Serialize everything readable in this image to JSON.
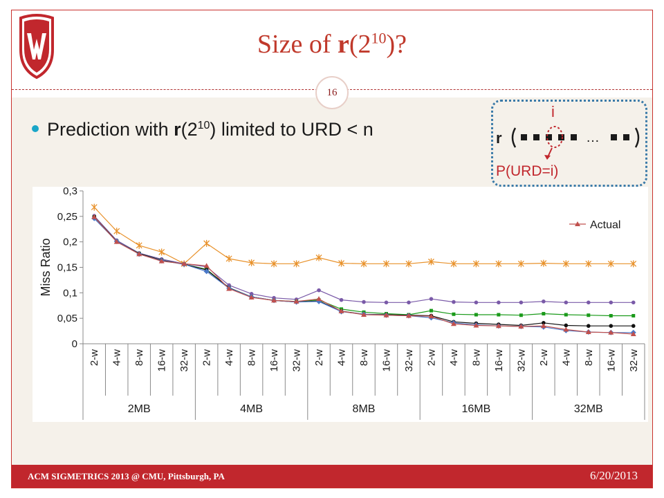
{
  "slide": {
    "title_prefix": "Size of ",
    "title_bold": "r",
    "title_paren_open": "(2",
    "title_sup": "10",
    "title_suffix": ")?",
    "page_number": "16",
    "bullet_a": "Prediction with ",
    "bullet_bold": "r",
    "bullet_b": "(2",
    "bullet_sup": "10",
    "bullet_c": ") limited to URD < n"
  },
  "diagram": {
    "r_label": "r",
    "index_label": "i",
    "ellipsis": "…",
    "prob_label": "P(URD=i)"
  },
  "footer": {
    "left": "ACM SIGMETRICS 2013 @ CMU, Pittsburgh, PA",
    "right": "6/20/2013"
  },
  "colors": {
    "accent": "#c1272d",
    "bullet": "#1aa6c8",
    "diagram_border": "#3a7aa8"
  },
  "chart_data": {
    "type": "line",
    "ylabel": "Miss Ratio",
    "ylim": [
      0,
      0.3
    ],
    "yticks": [
      "0",
      "0,05",
      "0,1",
      "0,15",
      "0,2",
      "0,25",
      "0,3"
    ],
    "categories": [
      "2-w",
      "4-w",
      "8-w",
      "16-w",
      "32-w",
      "2-w",
      "4-w",
      "8-w",
      "16-w",
      "32-w",
      "2-w",
      "4-w",
      "8-w",
      "16-w",
      "32-w",
      "2-w",
      "4-w",
      "8-w",
      "16-w",
      "32-w",
      "2-w",
      "4-w",
      "8-w",
      "16-w",
      "32-w"
    ],
    "groups": [
      "2MB",
      "4MB",
      "8MB",
      "16MB",
      "32MB"
    ],
    "grid": false,
    "legend_position": "top-right",
    "series": [
      {
        "color": "#e8912a",
        "marker": "star",
        "values": [
          0.268,
          0.221,
          0.193,
          0.18,
          0.157,
          0.197,
          0.167,
          0.159,
          0.157,
          0.157,
          0.169,
          0.158,
          0.157,
          0.157,
          0.157,
          0.161,
          0.157,
          0.157,
          0.157,
          0.157,
          0.158,
          0.157,
          0.157,
          0.157,
          0.157
        ]
      },
      {
        "color": "#7a5aa8",
        "marker": "circle",
        "values": [
          0.251,
          0.203,
          0.178,
          0.166,
          0.157,
          0.151,
          0.115,
          0.098,
          0.09,
          0.087,
          0.105,
          0.086,
          0.082,
          0.081,
          0.081,
          0.088,
          0.082,
          0.081,
          0.081,
          0.081,
          0.083,
          0.081,
          0.081,
          0.081,
          0.081
        ]
      },
      {
        "color": "#1a9a1a",
        "marker": "square",
        "values": [
          0.249,
          0.201,
          0.177,
          0.164,
          0.156,
          0.146,
          0.11,
          0.092,
          0.085,
          0.083,
          0.086,
          0.068,
          0.062,
          0.059,
          0.057,
          0.065,
          0.058,
          0.057,
          0.057,
          0.056,
          0.059,
          0.057,
          0.056,
          0.055,
          0.055
        ]
      },
      {
        "color": "#111111",
        "marker": "circle",
        "values": [
          0.249,
          0.201,
          0.177,
          0.164,
          0.156,
          0.145,
          0.11,
          0.092,
          0.085,
          0.082,
          0.084,
          0.064,
          0.058,
          0.057,
          0.056,
          0.055,
          0.043,
          0.04,
          0.038,
          0.036,
          0.041,
          0.036,
          0.035,
          0.035,
          0.035
        ]
      },
      {
        "color": "#4a78c8",
        "marker": "diamond",
        "values": [
          0.246,
          0.201,
          0.176,
          0.163,
          0.156,
          0.142,
          0.109,
          0.092,
          0.085,
          0.082,
          0.083,
          0.063,
          0.058,
          0.056,
          0.055,
          0.051,
          0.041,
          0.037,
          0.035,
          0.034,
          0.033,
          0.026,
          0.023,
          0.022,
          0.022
        ]
      },
      {
        "name": "Actual",
        "color": "#c0504d",
        "marker": "triangle",
        "values": [
          0.249,
          0.2,
          0.176,
          0.162,
          0.157,
          0.153,
          0.108,
          0.091,
          0.085,
          0.083,
          0.088,
          0.064,
          0.057,
          0.056,
          0.055,
          0.054,
          0.039,
          0.036,
          0.035,
          0.034,
          0.035,
          0.028,
          0.023,
          0.022,
          0.019
        ]
      }
    ]
  }
}
